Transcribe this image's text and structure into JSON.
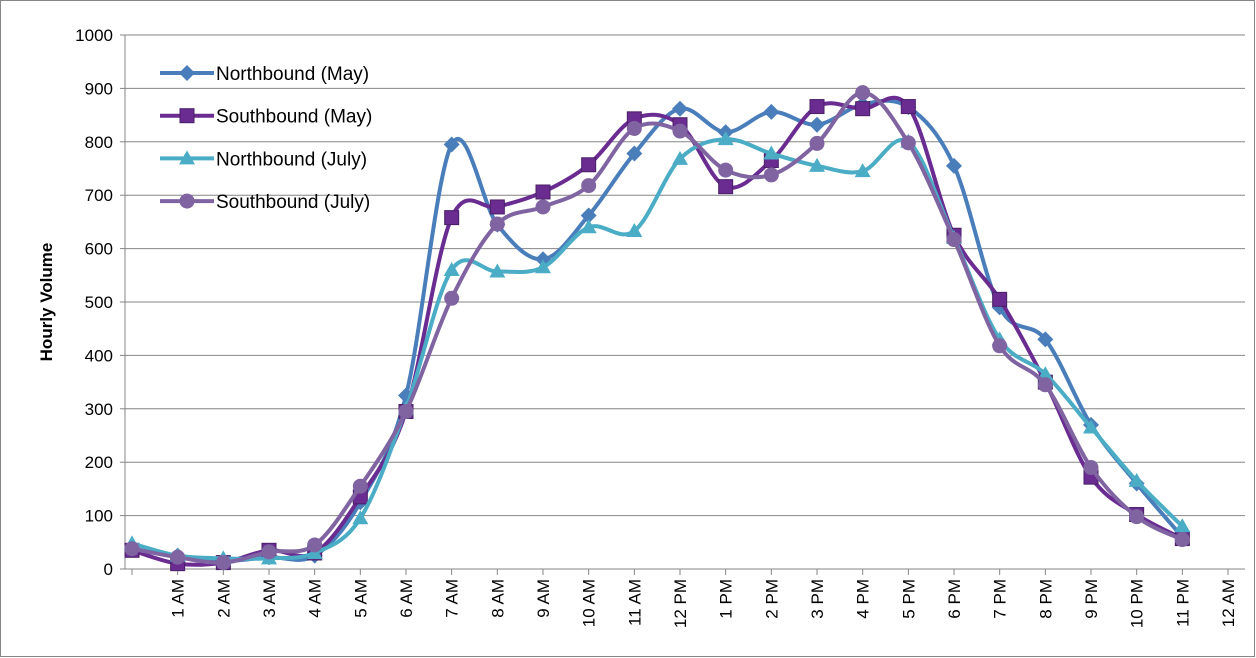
{
  "chart_data": {
    "type": "line",
    "y_label": "Hourly Volume",
    "categories": [
      null,
      "1 AM",
      "2 AM",
      "3 AM",
      "4 AM",
      "5 AM",
      "6 AM",
      "7 AM",
      "8 AM",
      "9 AM",
      "10 AM",
      "11 AM",
      "12 PM",
      "1 PM",
      "2 PM",
      "3 PM",
      "4 PM",
      "5 PM",
      "6 PM",
      "7 PM",
      "8 PM",
      "9 PM",
      "10 PM",
      "11 PM",
      "12 AM"
    ],
    "series": [
      {
        "name": "Northbound (May)",
        "color": "#4a7ebb",
        "marker": "diamond",
        "values": [
          38,
          25,
          15,
          22,
          25,
          125,
          325,
          795,
          645,
          580,
          662,
          778,
          862,
          818,
          856,
          832,
          870,
          865,
          755,
          490,
          430,
          270,
          160,
          60,
          null
        ]
      },
      {
        "name": "Southbound (May)",
        "color": "#6a2c91",
        "marker": "square",
        "values": [
          35,
          10,
          12,
          35,
          30,
          135,
          295,
          658,
          678,
          706,
          757,
          843,
          832,
          716,
          765,
          866,
          862,
          866,
          625,
          505,
          350,
          172,
          102,
          57,
          null
        ]
      },
      {
        "name": "Northbound (July)",
        "color": "#4bacc6",
        "marker": "triangle",
        "values": [
          48,
          25,
          20,
          20,
          30,
          95,
          300,
          560,
          557,
          565,
          640,
          633,
          768,
          805,
          778,
          755,
          745,
          800,
          620,
          430,
          365,
          265,
          165,
          80,
          null
        ]
      },
      {
        "name": "Southbound (July)",
        "color": "#8064a2",
        "marker": "circle",
        "values": [
          38,
          22,
          12,
          32,
          45,
          155,
          295,
          507,
          646,
          678,
          718,
          825,
          820,
          747,
          738,
          797,
          892,
          798,
          617,
          418,
          345,
          190,
          98,
          55,
          null
        ]
      }
    ],
    "ylim": [
      0,
      1000
    ],
    "yticks": [
      0,
      100,
      200,
      300,
      400,
      500,
      600,
      700,
      800,
      900,
      1000
    ],
    "grid": true,
    "legend": "upper-left",
    "smooth": true
  }
}
